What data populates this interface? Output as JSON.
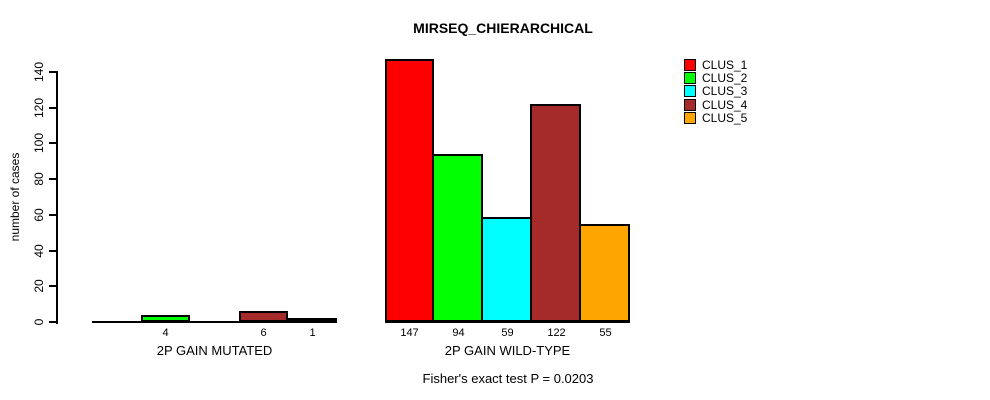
{
  "chart_data": {
    "type": "bar",
    "title": "MIRSEQ_CHIERARCHICAL",
    "ylabel": "number of cases",
    "xlabel": "",
    "ylim": [
      0,
      140
    ],
    "yticks": [
      0,
      20,
      40,
      60,
      80,
      100,
      120,
      140
    ],
    "grid": false,
    "legend_position": "right-top",
    "annotation": "Fisher's exact test P = 0.0203",
    "series_names": [
      "CLUS_1",
      "CLUS_2",
      "CLUS_3",
      "CLUS_4",
      "CLUS_5"
    ],
    "series_colors": [
      "#FF0000",
      "#00FF00",
      "#00FFFF",
      "#A52A2A",
      "#FFA500"
    ],
    "groups": [
      {
        "label": "2P GAIN MUTATED",
        "values": [
          null,
          4,
          null,
          6,
          1
        ],
        "bar_labels": [
          "",
          "4",
          "",
          "6",
          "1"
        ]
      },
      {
        "label": "2P GAIN WILD-TYPE",
        "values": [
          147,
          94,
          59,
          122,
          55
        ],
        "bar_labels": [
          "147",
          "94",
          "59",
          "122",
          "55"
        ]
      }
    ],
    "legend": [
      {
        "label": "CLUS_1",
        "color": "#FF0000"
      },
      {
        "label": "CLUS_2",
        "color": "#00FF00"
      },
      {
        "label": "CLUS_3",
        "color": "#00FFFF"
      },
      {
        "label": "CLUS_4",
        "color": "#A52A2A"
      },
      {
        "label": "CLUS_5",
        "color": "#FFA500"
      }
    ]
  }
}
